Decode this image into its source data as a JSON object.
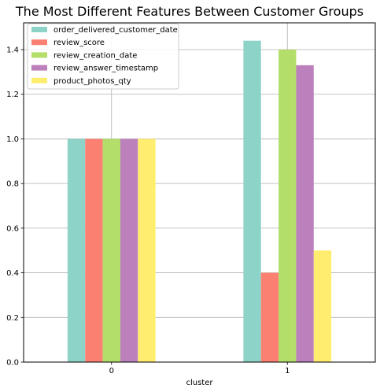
{
  "chart_data": {
    "type": "bar",
    "title": "The Most Different Features Between Customer Groups",
    "xlabel": "cluster",
    "ylabel": "",
    "categories": [
      "0",
      "1"
    ],
    "ylim": [
      0,
      1.52
    ],
    "yticks": [
      "0.0",
      "0.2",
      "0.4",
      "0.6",
      "0.8",
      "1.0",
      "1.2",
      "1.4"
    ],
    "grid": true,
    "legend_position": "top-left",
    "series": [
      {
        "name": "order_delivered_customer_date",
        "color": "#8dd3c7",
        "values": [
          1.0,
          1.44
        ]
      },
      {
        "name": "review_score",
        "color": "#fb8072",
        "values": [
          1.0,
          0.4
        ]
      },
      {
        "name": "review_creation_date",
        "color": "#b3de69",
        "values": [
          1.0,
          1.4
        ]
      },
      {
        "name": "review_answer_timestamp",
        "color": "#bc80bd",
        "values": [
          1.0,
          1.33
        ]
      },
      {
        "name": "product_photos_qty",
        "color": "#ffed6f",
        "values": [
          1.0,
          0.5
        ]
      }
    ]
  }
}
